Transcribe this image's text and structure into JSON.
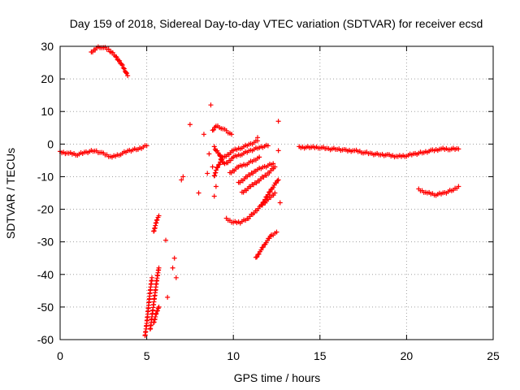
{
  "chart_data": {
    "type": "scatter",
    "title": "Day 159 of 2018, Sidereal Day-to-day VTEC variation (SDTVAR) for receiver ecsd",
    "xlabel": "GPS time / hours",
    "ylabel": "SDTVAR / TECUs",
    "xlim": [
      0,
      25
    ],
    "ylim": [
      -60,
      30
    ],
    "xticks": [
      0,
      5,
      10,
      15,
      20,
      25
    ],
    "yticks": [
      -60,
      -50,
      -40,
      -30,
      -20,
      -10,
      0,
      10,
      20,
      30
    ],
    "grid": true,
    "marker": "+",
    "color": "#ff0000",
    "segments": [
      {
        "name": "early-band",
        "points": [
          [
            0,
            -2.5
          ],
          [
            0.5,
            -2.8
          ],
          [
            1,
            -3.2
          ],
          [
            1.5,
            -2.5
          ],
          [
            2,
            -2
          ],
          [
            2.5,
            -3
          ],
          [
            3,
            -4
          ],
          [
            3.5,
            -3
          ],
          [
            4,
            -2
          ],
          [
            4.5,
            -1.5
          ],
          [
            5,
            -0.5
          ]
        ]
      },
      {
        "name": "early-high-arc",
        "points": [
          [
            1.8,
            28
          ],
          [
            2.1,
            29.5
          ],
          [
            2.4,
            29.8
          ],
          [
            2.8,
            29
          ],
          [
            3.2,
            27
          ],
          [
            3.6,
            24
          ],
          [
            3.9,
            21
          ]
        ]
      },
      {
        "name": "steep-a",
        "points": [
          [
            4.9,
            -59
          ],
          [
            5.0,
            -55
          ],
          [
            5.1,
            -50
          ],
          [
            5.2,
            -45
          ],
          [
            5.3,
            -41
          ]
        ]
      },
      {
        "name": "steep-b",
        "points": [
          [
            5.2,
            -57
          ],
          [
            5.3,
            -53
          ],
          [
            5.4,
            -49
          ],
          [
            5.5,
            -45
          ],
          [
            5.6,
            -41
          ],
          [
            5.7,
            -38
          ]
        ]
      },
      {
        "name": "steep-c",
        "points": [
          [
            5.4,
            -55
          ],
          [
            5.55,
            -52
          ],
          [
            5.7,
            -50
          ]
        ]
      },
      {
        "name": "steep-d",
        "points": [
          [
            5.4,
            -27
          ],
          [
            5.5,
            -25
          ],
          [
            5.6,
            -23
          ],
          [
            5.7,
            -22
          ]
        ]
      },
      {
        "name": "scatter-mid",
        "points": [
          [
            6.1,
            -29.5
          ],
          [
            6.5,
            -38
          ],
          [
            6.6,
            -35
          ],
          [
            6.7,
            -41
          ],
          [
            6.2,
            -47
          ],
          [
            7.0,
            -11
          ],
          [
            7.1,
            -10
          ],
          [
            7.5,
            6
          ],
          [
            8.0,
            -15
          ],
          [
            8.3,
            3
          ],
          [
            8.5,
            -9
          ],
          [
            8.7,
            12
          ],
          [
            8.9,
            -16
          ],
          [
            9.0,
            -13
          ],
          [
            8.6,
            -3
          ],
          [
            8.8,
            -7
          ]
        ]
      },
      {
        "name": "arc-9-upper",
        "points": [
          [
            8.8,
            4
          ],
          [
            9.0,
            5.5
          ],
          [
            9.3,
            5
          ],
          [
            9.6,
            4
          ],
          [
            9.9,
            3
          ]
        ]
      },
      {
        "name": "arc-9-lower",
        "points": [
          [
            8.9,
            -1
          ],
          [
            9.0,
            -2
          ],
          [
            9.2,
            -3
          ],
          [
            9.3,
            -5
          ],
          [
            9.5,
            -6
          ]
        ]
      },
      {
        "name": "arc-9-low",
        "points": [
          [
            8.9,
            -10
          ],
          [
            9.0,
            -8
          ],
          [
            9.2,
            -6
          ],
          [
            9.4,
            -4
          ]
        ]
      },
      {
        "name": "slope-a",
        "points": [
          [
            9.5,
            -4
          ],
          [
            10,
            -2
          ],
          [
            10.5,
            -1
          ],
          [
            11,
            0
          ],
          [
            11.4,
            1
          ]
        ]
      },
      {
        "name": "slope-b",
        "points": [
          [
            9.6,
            -6
          ],
          [
            10,
            -4
          ],
          [
            10.5,
            -3
          ],
          [
            11,
            -2
          ],
          [
            11.5,
            -1
          ],
          [
            12,
            -0.5
          ]
        ]
      },
      {
        "name": "slope-c",
        "points": [
          [
            9.8,
            -9
          ],
          [
            10.3,
            -7
          ],
          [
            10.8,
            -6
          ],
          [
            11.2,
            -5
          ],
          [
            11.5,
            -4
          ]
        ]
      },
      {
        "name": "slope-d",
        "points": [
          [
            10.3,
            -12
          ],
          [
            10.8,
            -10
          ],
          [
            11.3,
            -8
          ],
          [
            11.8,
            -7
          ],
          [
            12.3,
            -6
          ]
        ]
      },
      {
        "name": "slope-e",
        "points": [
          [
            10.5,
            -15
          ],
          [
            11,
            -13
          ],
          [
            11.5,
            -11
          ],
          [
            12,
            -9
          ],
          [
            12.4,
            -7
          ]
        ]
      },
      {
        "name": "u-arc",
        "points": [
          [
            9.6,
            -23
          ],
          [
            10,
            -24
          ],
          [
            10.4,
            -24
          ],
          [
            10.8,
            -23
          ],
          [
            11.2,
            -21
          ],
          [
            11.6,
            -19
          ],
          [
            12,
            -17
          ],
          [
            12.4,
            -15
          ]
        ]
      },
      {
        "name": "steep-e",
        "points": [
          [
            11.3,
            -35
          ],
          [
            11.6,
            -32.5
          ],
          [
            11.9,
            -30
          ],
          [
            12.2,
            -28
          ],
          [
            12.5,
            -27
          ]
        ]
      },
      {
        "name": "steep-f",
        "points": [
          [
            11.6,
            -19
          ],
          [
            12,
            -15.5
          ],
          [
            12.3,
            -13
          ],
          [
            12.6,
            -11
          ]
        ]
      },
      {
        "name": "isolated",
        "points": [
          [
            12.6,
            7
          ],
          [
            12.6,
            -2
          ],
          [
            12.7,
            -18
          ],
          [
            11.4,
            2
          ]
        ]
      },
      {
        "name": "late-band",
        "points": [
          [
            13.8,
            -1
          ],
          [
            14.5,
            -1
          ],
          [
            15,
            -1
          ],
          [
            15.5,
            -1.5
          ],
          [
            16,
            -1.5
          ],
          [
            16.5,
            -2
          ],
          [
            17,
            -2
          ],
          [
            17.5,
            -2.5
          ],
          [
            18,
            -3
          ],
          [
            18.5,
            -3.2
          ],
          [
            19,
            -3.5
          ],
          [
            19.5,
            -3.8
          ],
          [
            20,
            -3.5
          ],
          [
            20.5,
            -3
          ],
          [
            21,
            -2.5
          ],
          [
            21.5,
            -2
          ],
          [
            22,
            -1.5
          ],
          [
            22.5,
            -1.5
          ],
          [
            23,
            -1.5
          ]
        ]
      },
      {
        "name": "late-arc",
        "points": [
          [
            20.7,
            -14
          ],
          [
            21.2,
            -15
          ],
          [
            21.7,
            -15.5
          ],
          [
            22.2,
            -15
          ],
          [
            22.7,
            -14
          ],
          [
            23.0,
            -13
          ]
        ]
      }
    ]
  }
}
